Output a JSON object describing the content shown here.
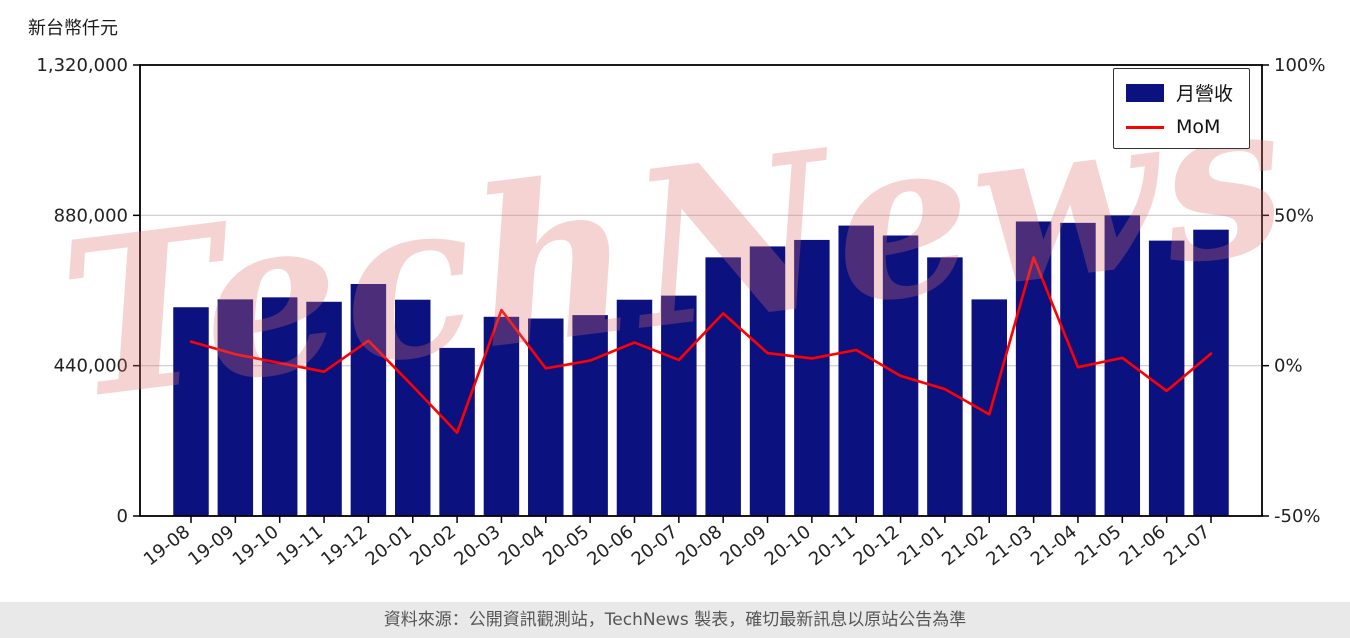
{
  "page": {
    "watermark": "TechNews",
    "footer": "資料來源：公開資訊觀測站，TechNews 製表，確切最新訊息以原站公告為準"
  },
  "legend": {
    "bar_label": "月營收",
    "line_label": "MoM"
  },
  "colors": {
    "bar": "#0b1280",
    "line": "#ff0000",
    "grid": "#cccccc",
    "frame": "#000000",
    "tick_text": "#222222"
  },
  "chart_data": {
    "type": "bar+line",
    "title": "",
    "categories": [
      "19-08",
      "19-09",
      "19-10",
      "19-11",
      "19-12",
      "20-01",
      "20-02",
      "20-03",
      "20-04",
      "20-05",
      "20-06",
      "20-07",
      "20-08",
      "20-09",
      "20-10",
      "20-11",
      "20-12",
      "21-01",
      "21-02",
      "21-03",
      "21-04",
      "21-05",
      "21-06",
      "21-07"
    ],
    "series": [
      {
        "name": "月營收",
        "type": "bar",
        "axis": "left",
        "color": "#0b1280",
        "values": [
          611000,
          634000,
          640000,
          627000,
          679000,
          633000,
          492000,
          583000,
          578000,
          588000,
          633000,
          645000,
          757000,
          789000,
          808000,
          850000,
          821000,
          757000,
          634000,
          862000,
          858000,
          880000,
          806000,
          838000
        ]
      },
      {
        "name": "MoM",
        "type": "line",
        "axis": "right",
        "color": "#ff0000",
        "values": [
          8.0,
          3.8,
          0.9,
          -2.0,
          8.3,
          -6.8,
          -22.3,
          18.5,
          -0.9,
          1.7,
          7.7,
          1.9,
          17.4,
          4.2,
          2.4,
          5.2,
          -3.4,
          -7.8,
          -16.2,
          36.0,
          -0.5,
          2.6,
          -8.4,
          4.0
        ]
      }
    ],
    "left_axis": {
      "title": "新台幣仟元",
      "range": [
        0,
        1320000
      ],
      "ticks": [
        0,
        440000,
        880000,
        1320000
      ],
      "tick_labels": [
        "0",
        "440,000",
        "880,000",
        "1,320,000"
      ]
    },
    "right_axis": {
      "range": [
        -50,
        100
      ],
      "ticks": [
        -50,
        0,
        50,
        100
      ],
      "tick_labels": [
        "-50%",
        "0%",
        "50%",
        "100%"
      ]
    },
    "grid": "horizontal-inner-ticks-only",
    "legend_position": "top-right"
  }
}
